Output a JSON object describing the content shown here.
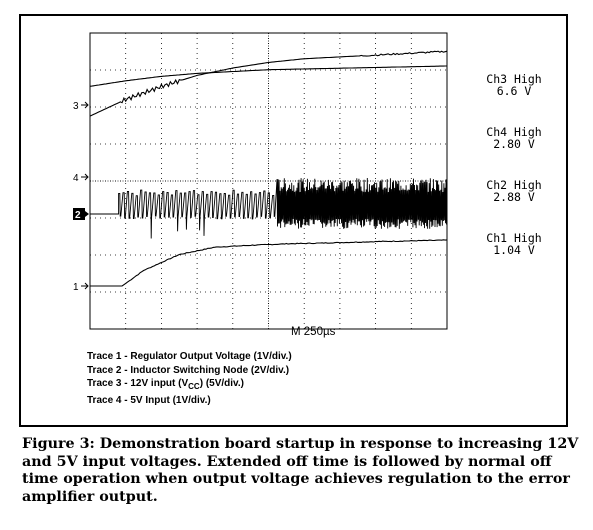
{
  "chart_data": {
    "type": "line",
    "title": "",
    "timebase": "M  250µs",
    "channel_readouts": [
      {
        "label": "Ch3 High",
        "value": "6.6 V"
      },
      {
        "label": "Ch4 High",
        "value": "2.80 V"
      },
      {
        "label": "Ch2 High",
        "value": "2.88 V"
      },
      {
        "label": "Ch1 High",
        "value": "1.04 V"
      }
    ],
    "channel_markers": [
      "3",
      "4",
      "2",
      "1"
    ],
    "grid": {
      "x_divisions": 10,
      "y_divisions": 8,
      "visible": true
    },
    "series": [
      {
        "name": "Trace 1 - Regulator Output Voltage (1V/div.)",
        "marker": "1",
        "x_div": [
          0,
          0.9,
          1.5,
          2.5,
          3.5,
          4.5,
          5.5,
          6.5,
          8,
          10
        ],
        "y_div": [
          0,
          0,
          0.42,
          0.85,
          1.05,
          1.1,
          1.14,
          1.16,
          1.2,
          1.24
        ]
      },
      {
        "name": "Trace 2 - Inductor Switching Node (2V/div.)",
        "marker": "2",
        "x_div": [
          0,
          0.8,
          1.1,
          2,
          3,
          4,
          5.2,
          6,
          8,
          10
        ],
        "y_div": [
          0,
          0,
          1.1,
          1.0,
          0.95,
          1.0,
          1.7,
          1.9,
          2.0,
          2.1
        ]
      },
      {
        "name": "Trace 3 - 12V input (VCC) (5V/div.)",
        "marker": "3",
        "x_div": [
          0,
          1,
          2,
          3,
          4,
          5,
          6,
          7,
          8,
          9,
          10
        ],
        "y_div": [
          -0.3,
          0.15,
          0.5,
          0.8,
          1.0,
          1.15,
          1.25,
          1.3,
          1.35,
          1.4,
          1.45
        ]
      },
      {
        "name": "Trace 4 - 5V Input (1V/div.)",
        "marker": "4",
        "x_div": [
          0,
          1,
          2,
          3,
          4,
          5,
          6,
          8,
          10
        ],
        "y_div": [
          2.45,
          2.6,
          2.72,
          2.8,
          2.85,
          2.9,
          2.92,
          2.96,
          3.0
        ]
      }
    ]
  },
  "legend": {
    "t1": "Trace 1 - Regulator Output Voltage (1V/div.)",
    "t2": "Trace 2 - Inductor Switching Node (2V/div.)",
    "t3_pre": "Trace 3 - 12V input (V",
    "t3_sub": "CC",
    "t3_post": ") (5V/div.)",
    "t4": "Trace 4 - 5V Input  (1V/div.)"
  },
  "caption": "Figure 3: Demonstration board startup in response to increasing 12V and 5V input voltages. Extended off time is followed by normal off time operation when output voltage achieves regulation to the error amplifier output."
}
